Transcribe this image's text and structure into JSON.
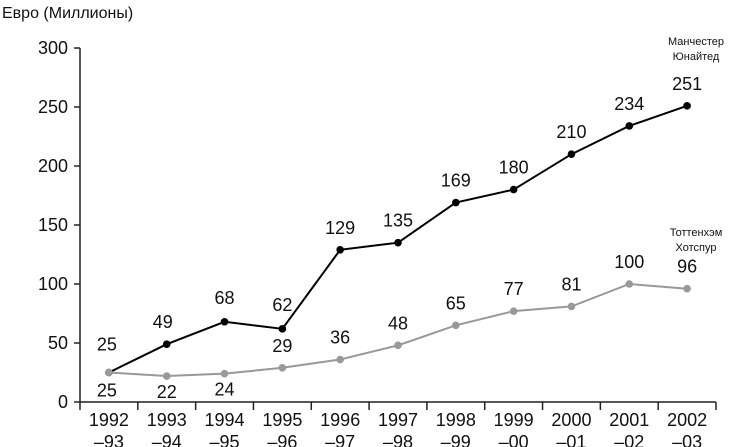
{
  "chart_data": {
    "type": "line",
    "ylabel": "Евро (Миллионы)",
    "ylim": [
      0,
      300
    ],
    "yticks": [
      "0",
      "50",
      "100",
      "150",
      "200",
      "250",
      "300"
    ],
    "categories": [
      [
        "1992",
        "–93"
      ],
      [
        "1993",
        "–94"
      ],
      [
        "1994",
        "–95"
      ],
      [
        "1995",
        "–96"
      ],
      [
        "1996",
        "–97"
      ],
      [
        "1997",
        "–98"
      ],
      [
        "1998",
        "–99"
      ],
      [
        "1999",
        "–00"
      ],
      [
        "2000",
        "–01"
      ],
      [
        "2001",
        "–02"
      ],
      [
        "2002",
        "–03"
      ]
    ],
    "grid": false,
    "series": [
      {
        "name": [
          "Манчестер",
          "Юнайтед"
        ],
        "color": "#000000",
        "values": [
          25,
          49,
          68,
          62,
          129,
          135,
          169,
          180,
          210,
          234,
          251
        ],
        "labels": [
          "25",
          "49",
          "68",
          "62",
          "129",
          "135",
          "169",
          "180",
          "210",
          "234",
          "251"
        ]
      },
      {
        "name": [
          "Тоттенхэм",
          "Хотспур"
        ],
        "color": "#999999",
        "values": [
          25,
          22,
          24,
          29,
          36,
          48,
          65,
          77,
          81,
          100,
          96
        ],
        "labels": [
          "25",
          "22",
          "24",
          "29",
          "36",
          "48",
          "65",
          "77",
          "81",
          "100",
          "96"
        ]
      }
    ]
  }
}
